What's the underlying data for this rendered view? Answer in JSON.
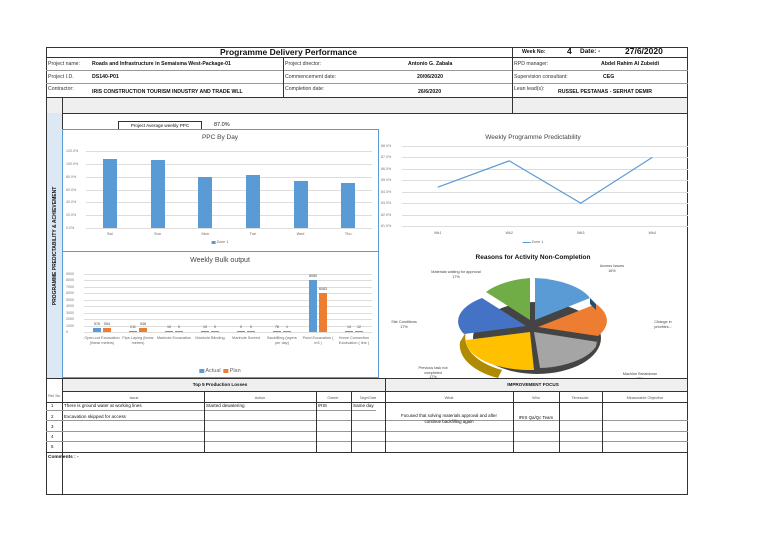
{
  "header": {
    "title": "Programme Delivery Performance",
    "week_no_label": "Week No:",
    "week_no": "4",
    "date_label": "Date: -",
    "date": "27/6/2020",
    "rows": [
      {
        "label": "Project name:",
        "value": "Roads and Infrastructure in Semaisma West-Package-01",
        "label2": "Project director:",
        "value2": "Antonio G. Zabala",
        "label3": "RPD manager:",
        "value3": "Abdel Rahim Al Zubeidi"
      },
      {
        "label": "Project I.D.",
        "value": "DS140-P01",
        "label2": "Commencement date:",
        "value2": "20/06/2020",
        "label3": "Supervision consultant:",
        "value3": "CEG"
      },
      {
        "label": "Contractor:",
        "value": "IRIS CONSTRUCTION TOURISM INDUSTRY AND TRADE WLL",
        "label2": "Completion date:",
        "value2": "26/6/2020",
        "label3": "Lean lead(s):",
        "value3": "RUSSEL PESTANAS - SERHAT DEMIR"
      }
    ]
  },
  "side_label": "PROGRAMME PREDICTABILITY & ACHIEVEMENT",
  "ppc_summary": {
    "label": "Project Average weekly PPC",
    "value": "87.0%"
  },
  "chart_data": [
    {
      "type": "bar",
      "title": "PPC By Day",
      "categories": [
        "Sat",
        "Sun",
        "Mon",
        "Tue",
        "Wed",
        "Thu"
      ],
      "series": [
        {
          "name": "Zone 1",
          "color": "#5b9bd5",
          "values": [
            108,
            106.5,
            80,
            83,
            74,
            70
          ]
        }
      ],
      "yticks": [
        "120.0%",
        "100.0%",
        "80.0%",
        "60.0%",
        "40.0%",
        "20.0%",
        "0.0%"
      ],
      "ylim": [
        0,
        120
      ],
      "legend": "Zone 1",
      "legend_position": "bottom",
      "grid": true
    },
    {
      "type": "line",
      "title": "Weekly Programme Predictability",
      "categories": [
        "Wk1",
        "Wk2",
        "Wk3",
        "Wk4"
      ],
      "series": [
        {
          "name": "Zone 1",
          "color": "#5b9bd5",
          "values": [
            84.4,
            86.7,
            83.0,
            87.0
          ]
        }
      ],
      "yticks": [
        "88.0%",
        "87.0%",
        "86.0%",
        "85.0%",
        "84.0%",
        "83.0%",
        "82.0%",
        "81.0%"
      ],
      "ylim": [
        81,
        88
      ],
      "legend": "Zone 1",
      "legend_position": "bottom",
      "grid": true
    },
    {
      "type": "bar",
      "title": "Weekly Bulk output",
      "categories": [
        "Open-cut Excavation (linear meters)",
        "Pipe Laying (linear metres)",
        "Manhole Excavation",
        "Manhole Blinding",
        "Manhole Screed",
        "Backfilling (layers per day)",
        "Pond Excavation ( m3 )",
        "Home Connection Excavation ( line )"
      ],
      "series": [
        {
          "name": "Actual",
          "color": "#5b9bd5",
          "values": [
            576,
            211,
            10,
            10,
            0,
            76,
            8080,
            14
          ]
        },
        {
          "name": "Plan",
          "color": "#ed7d31",
          "values": [
            554,
            548,
            0,
            0,
            0,
            1,
            6083,
            12
          ]
        }
      ],
      "yticks": [
        "9000",
        "8000",
        "7000",
        "6000",
        "5000",
        "4000",
        "3000",
        "2000",
        "1000",
        "0"
      ],
      "ylim": [
        0,
        9000
      ],
      "legend_position": "bottom",
      "grid": true
    },
    {
      "type": "pie",
      "title": "Reasons for Activity Non-Completion",
      "slices": [
        {
          "label": "Access Issues",
          "value": 16,
          "display": "16%",
          "color": "#5b9bd5"
        },
        {
          "label": "Change in priorities...",
          "value": 17,
          "display": "",
          "color": "#ed7d31"
        },
        {
          "label": "Machine Breakdown",
          "value": 17,
          "display": "17%",
          "color": "#a5a5a5"
        },
        {
          "label": "Previous task not completed",
          "value": 17,
          "display": "17%",
          "color": "#ffc000"
        },
        {
          "label": "Site Conditions",
          "value": 17,
          "display": "17%",
          "color": "#4472c4"
        },
        {
          "label": "Materials waiting for approval",
          "value": 17,
          "display": "17%",
          "color": "#70ad47"
        }
      ]
    }
  ],
  "losses": {
    "title": "Top 5 Production Losses",
    "ref_header": "Ref. No.",
    "columns": [
      "Issue",
      "Action",
      "Owner",
      "Target Date"
    ],
    "rows": [
      {
        "no": "1",
        "issue": "There is ground water at working lines",
        "action": "Started dewatering",
        "owner": "IRIS",
        "target": "Same day"
      },
      {
        "no": "2",
        "issue": "Excavation skipped for access",
        "action": "",
        "owner": "",
        "target": ""
      },
      {
        "no": "3",
        "issue": "",
        "action": "",
        "owner": "",
        "target": ""
      },
      {
        "no": "4",
        "issue": "",
        "action": "",
        "owner": "",
        "target": ""
      },
      {
        "no": "5",
        "issue": "",
        "action": "",
        "owner": "",
        "target": ""
      }
    ]
  },
  "improvement": {
    "title": "IMPROVEMENT FOCUS",
    "columns": [
      "What",
      "Who",
      "Timescale",
      "Measurable Objective"
    ],
    "row1_what_line1": "Focused that solving materials approval and after",
    "row1_what_line2": "continue backfilling again",
    "row1_who": "IRIS Qa/Qc Team"
  },
  "comments_label": "Comments : -"
}
